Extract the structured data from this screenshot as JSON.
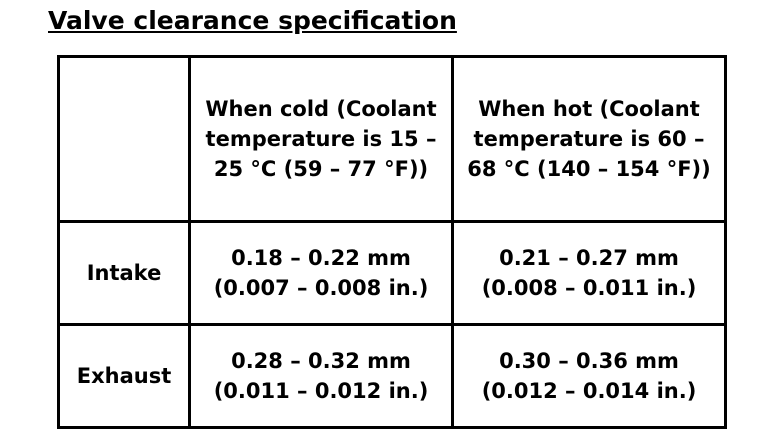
{
  "header": {
    "title": "Valve clearance specification"
  },
  "table": {
    "columns": [
      "When cold (Coolant temperature is 15 – 25 °C (59 – 77 °F))",
      "When hot (Coolant temperature is 60 – 68 °C (140 – 154 °F))"
    ],
    "rows": [
      {
        "label": "Intake",
        "values": [
          "0.18 – 0.22 mm (0.007 – 0.008 in.)",
          "0.21 – 0.27 mm (0.008 – 0.011 in.)"
        ]
      },
      {
        "label": "Exhaust",
        "values": [
          "0.28 – 0.32 mm (0.011 – 0.012 in.)",
          "0.30 – 0.36 mm (0.012 – 0.014 in.)"
        ]
      }
    ]
  }
}
